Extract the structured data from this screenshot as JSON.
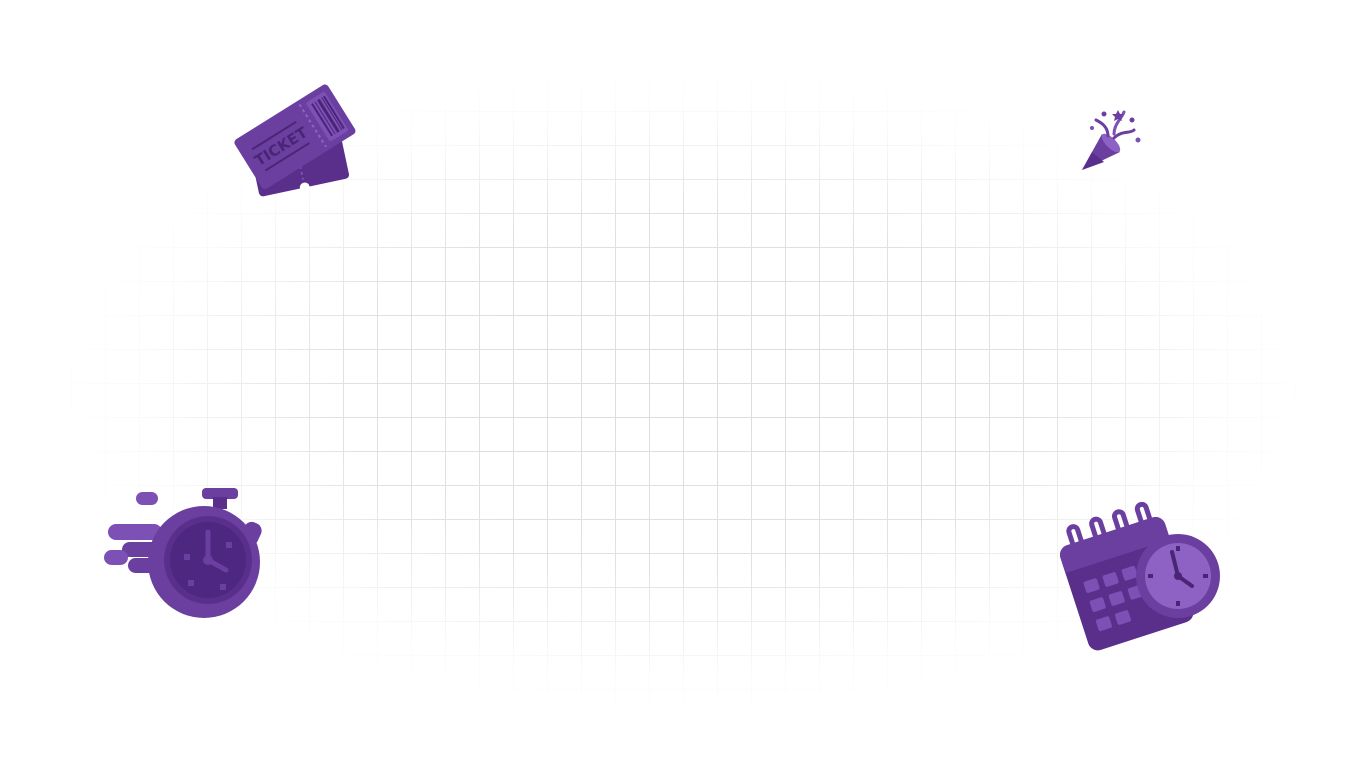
{
  "canvas": {
    "background": "#ffffff",
    "grid_color": "#dcdcdc"
  },
  "accent_color": "#6b3fa0",
  "decorations": [
    {
      "icon": "ticket-icon",
      "text": "TICKET"
    },
    {
      "icon": "party-popper-icon"
    },
    {
      "icon": "stopwatch-icon"
    },
    {
      "icon": "calendar-clock-icon"
    }
  ]
}
